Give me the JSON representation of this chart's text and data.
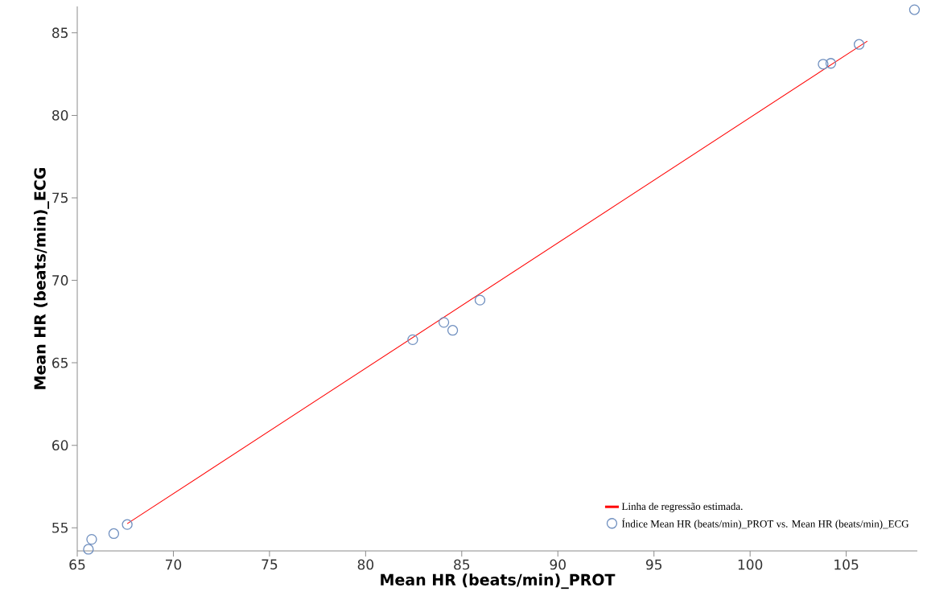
{
  "chart_data": {
    "type": "scatter",
    "xlabel": "Mean HR (beats/min)_PROT",
    "ylabel": "Mean HR (beats/min)_ECG",
    "xlim": [
      65,
      108.7
    ],
    "ylim": [
      53.6,
      86.6
    ],
    "xticks": [
      65,
      70,
      75,
      80,
      85,
      90,
      95,
      100,
      105
    ],
    "yticks": [
      55,
      60,
      65,
      70,
      75,
      80,
      85
    ],
    "grid": false,
    "legend": "bottom right",
    "series": [
      {
        "name": "Linha de regressão estimada.",
        "type": "line",
        "color": "#ff0000",
        "x": [
          67.6,
          106.1
        ],
        "values": [
          55.25,
          84.5
        ]
      },
      {
        "name": "Índice Mean HR (beats/min)_PROT vs. Mean HR (beats/min)_ECG",
        "marker": "circle",
        "color": "#6f8fbf",
        "x": [
          65.58,
          65.75,
          66.9,
          67.6,
          82.45,
          84.07,
          84.53,
          85.95,
          103.8,
          104.2,
          105.67,
          108.55
        ],
        "values": [
          53.7,
          54.3,
          54.65,
          55.2,
          66.4,
          67.45,
          66.97,
          68.8,
          83.1,
          83.15,
          84.3,
          86.4
        ]
      }
    ]
  }
}
